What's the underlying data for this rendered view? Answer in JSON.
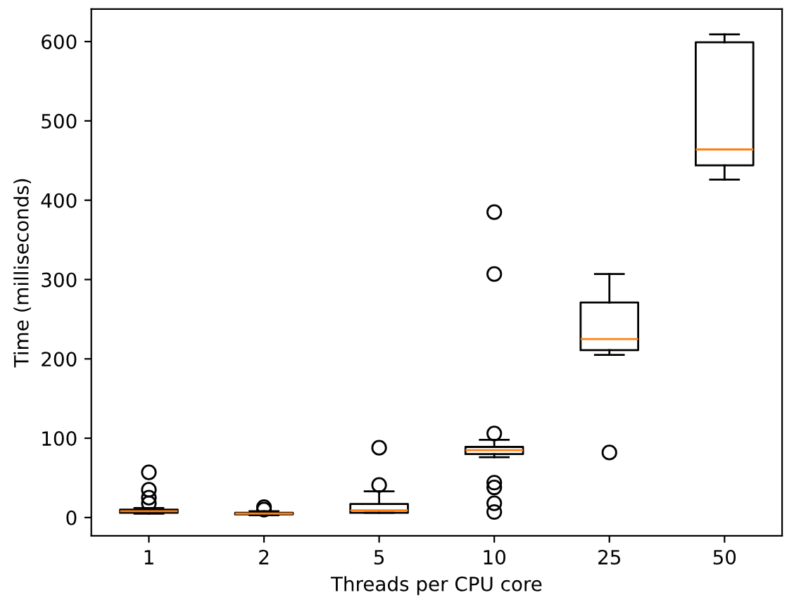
{
  "chart_data": {
    "type": "box",
    "xlabel": "Threads per CPU core",
    "ylabel": "Time (milliseconds)",
    "categories": [
      "1",
      "2",
      "5",
      "10",
      "25",
      "50"
    ],
    "boxes": [
      {
        "low": 5,
        "q1": 6,
        "median": 8,
        "q3": 10,
        "high": 12,
        "outliers": [
          18,
          25,
          35,
          57
        ]
      },
      {
        "low": 3,
        "q1": 4,
        "median": 5,
        "q3": 6,
        "high": 8,
        "outliers": [
          10,
          13
        ]
      },
      {
        "low": 6,
        "q1": 6,
        "median": 9,
        "q3": 17,
        "high": 33,
        "outliers": [
          41,
          88
        ]
      },
      {
        "low": 76,
        "q1": 80,
        "median": 85,
        "q3": 89,
        "high": 98,
        "outliers": [
          7,
          18,
          38,
          44,
          106,
          307,
          385
        ]
      },
      {
        "low": 205,
        "q1": 211,
        "median": 225,
        "q3": 271,
        "high": 307,
        "outliers": [
          82
        ]
      },
      {
        "low": 426,
        "q1": 444,
        "median": 464,
        "q3": 599,
        "high": 609
      }
    ],
    "color": "#000000",
    "ylim": [
      -23,
      641
    ],
    "yticks": [
      0,
      100,
      200,
      300,
      400,
      500,
      600
    ],
    "grid": false
  }
}
